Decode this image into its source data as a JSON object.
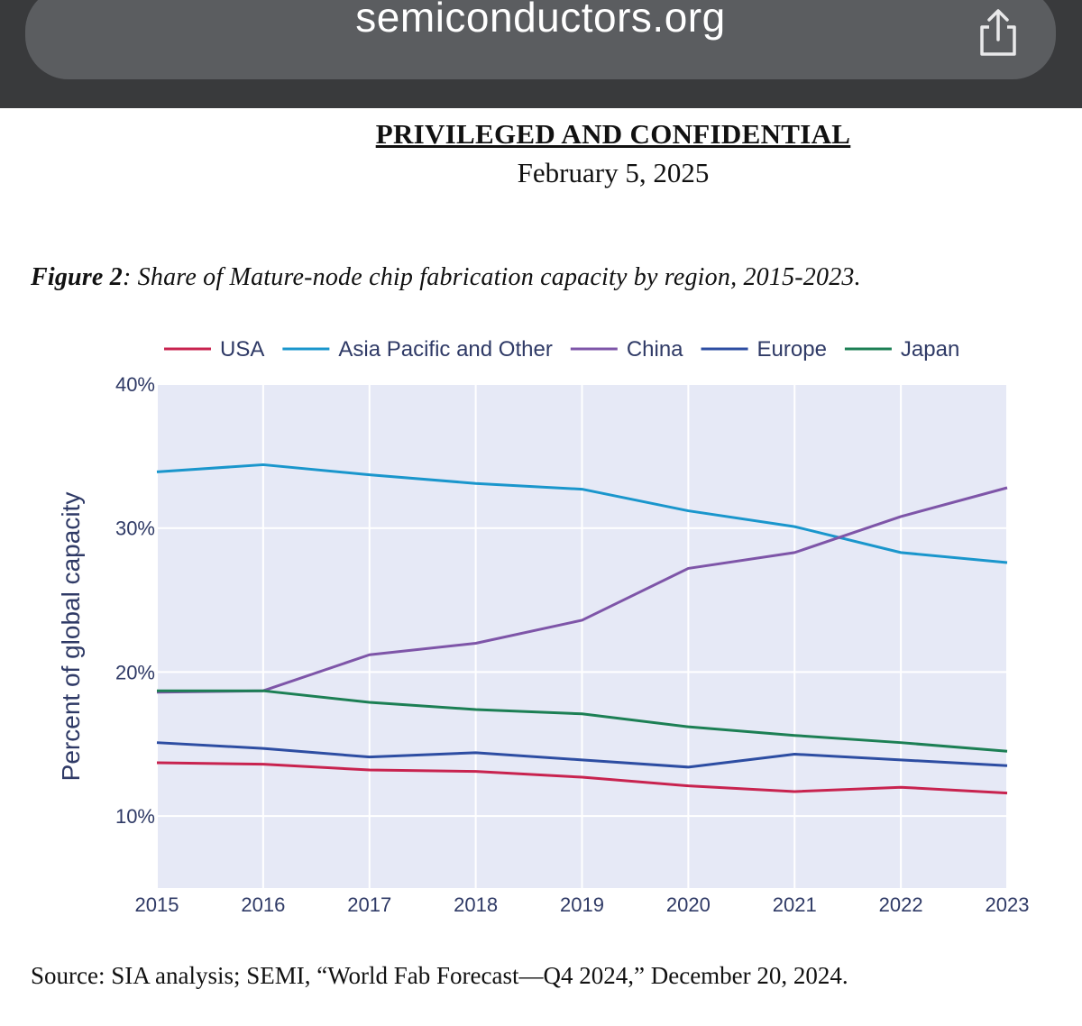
{
  "browser": {
    "url": "semiconductors.org",
    "share_icon": "share-icon"
  },
  "document": {
    "heading": "PRIVILEGED AND CONFIDENTIAL",
    "date": "February 5, 2025",
    "figure_label": "Figure 2",
    "figure_caption": ": Share of Mature-node chip fabrication capacity by region, 2015-2023.",
    "source": "Source: SIA analysis; SEMI, “World Fab Forecast—Q4 2024,” December 20, 2024."
  },
  "chart_data": {
    "type": "line",
    "title": "Share of Mature-node chip fabrication capacity by region, 2015-2023",
    "xlabel": "",
    "ylabel": "Percent of global capacity",
    "x": [
      2015,
      2016,
      2017,
      2018,
      2019,
      2020,
      2021,
      2022,
      2023
    ],
    "x_tick_labels": [
      "2015",
      "2016",
      "2017",
      "2018",
      "2019",
      "2020",
      "2021",
      "2022",
      "2023"
    ],
    "ylim": [
      5,
      40
    ],
    "y_ticks": [
      10,
      20,
      30,
      40
    ],
    "y_tick_labels": [
      "10%",
      "20%",
      "30%",
      "40%"
    ],
    "grid": true,
    "legend_position": "top",
    "background_color": "#e6e9f6",
    "series": [
      {
        "name": "USA",
        "color": "#c8234f",
        "values": [
          13.7,
          13.6,
          13.2,
          13.1,
          12.7,
          12.1,
          11.7,
          12.0,
          11.6
        ]
      },
      {
        "name": "Asia Pacific and Other",
        "color": "#1a96cc",
        "values": [
          33.9,
          34.4,
          33.7,
          33.1,
          32.7,
          31.2,
          30.1,
          28.3,
          27.6
        ]
      },
      {
        "name": "China",
        "color": "#7e55a8",
        "values": [
          18.6,
          18.7,
          21.2,
          22.0,
          23.6,
          27.2,
          28.3,
          30.8,
          32.8
        ]
      },
      {
        "name": "Europe",
        "color": "#2d4da2",
        "values": [
          15.1,
          14.7,
          14.1,
          14.4,
          13.9,
          13.4,
          14.3,
          13.9,
          13.5
        ]
      },
      {
        "name": "Japan",
        "color": "#1c7f54",
        "values": [
          18.7,
          18.7,
          17.9,
          17.4,
          17.1,
          16.2,
          15.6,
          15.1,
          14.5
        ]
      }
    ]
  }
}
